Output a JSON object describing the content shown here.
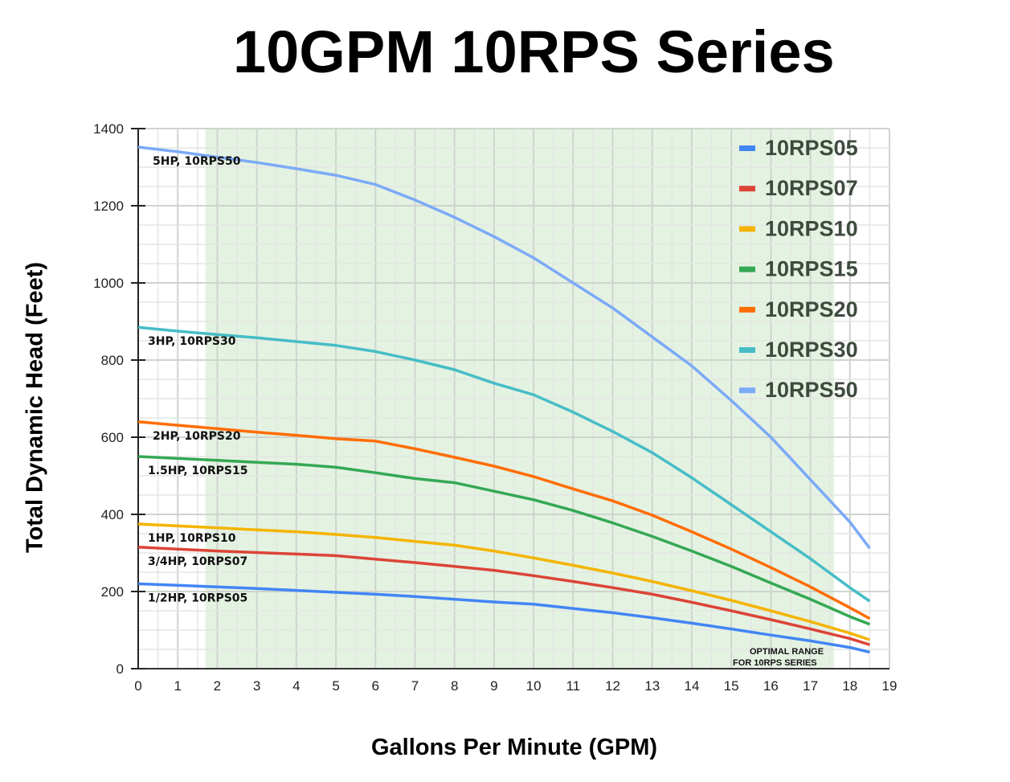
{
  "chart_data": {
    "type": "line",
    "title": "10GPM 10RPS Series",
    "xlabel": "Gallons Per Minute (GPM)",
    "ylabel": "Total Dynamic Head (Feet)",
    "xlim": [
      0,
      19
    ],
    "ylim": [
      0,
      1400
    ],
    "xticks": [
      "0",
      "1",
      "2",
      "3",
      "4",
      "5",
      "6",
      "7",
      "8",
      "9",
      "10",
      "11",
      "12",
      "13",
      "14",
      "15",
      "16",
      "17",
      "18",
      "19"
    ],
    "yticks": [
      "0",
      "200",
      "400",
      "600",
      "800",
      "1000",
      "1200",
      "1400"
    ],
    "grid": true,
    "legend_position": "top-right",
    "optimal_range": {
      "x": [
        1.7,
        17.6
      ],
      "label_line1": "OPTIMAL RANGE",
      "label_line2": "FOR 10RPS SERIES",
      "color": "#e4f2e2"
    },
    "x": [
      0,
      1,
      2,
      3,
      4,
      5,
      6,
      7,
      8,
      9,
      10,
      11,
      12,
      13,
      14,
      15,
      16,
      17,
      18,
      18.5
    ],
    "series": [
      {
        "name": "10RPS05",
        "label": "1/2HP, 10RPS05",
        "color": "#4285f4",
        "values": [
          220,
          216,
          212,
          208,
          203,
          198,
          193,
          187,
          180,
          173,
          167,
          156,
          145,
          132,
          118,
          103,
          87,
          72,
          55,
          43
        ]
      },
      {
        "name": "10RPS07",
        "label": "3/4HP, 10RPS07",
        "color": "#db4437",
        "values": [
          315,
          310,
          305,
          301,
          297,
          293,
          284,
          275,
          265,
          255,
          241,
          226,
          210,
          193,
          172,
          150,
          127,
          103,
          78,
          62
        ]
      },
      {
        "name": "10RPS10",
        "label": "1HP, 10RPS10",
        "color": "#f4b400",
        "values": [
          375,
          370,
          365,
          360,
          355,
          348,
          340,
          330,
          320,
          305,
          287,
          268,
          248,
          226,
          202,
          177,
          150,
          122,
          92,
          75
        ]
      },
      {
        "name": "10RPS15",
        "label": "1.5HP, 10RPS15",
        "color": "#34a853",
        "values": [
          550,
          545,
          540,
          535,
          530,
          522,
          508,
          493,
          482,
          460,
          438,
          410,
          378,
          343,
          305,
          265,
          222,
          180,
          135,
          115
        ]
      },
      {
        "name": "10RPS20",
        "label": "2HP, 10RPS20",
        "color": "#ff6d01",
        "values": [
          640,
          631,
          622,
          613,
          605,
          596,
          590,
          570,
          548,
          525,
          498,
          466,
          435,
          398,
          355,
          310,
          262,
          212,
          158,
          130
        ]
      },
      {
        "name": "10RPS30",
        "label": "3HP, 10RPS30",
        "color": "#46bdc6",
        "values": [
          885,
          875,
          866,
          858,
          848,
          838,
          822,
          800,
          775,
          740,
          710,
          665,
          615,
          560,
          495,
          425,
          355,
          285,
          210,
          175
        ]
      },
      {
        "name": "10RPS50",
        "label": "5HP, 10RPS50",
        "color": "#7baaf7",
        "values": [
          1352,
          1340,
          1326,
          1312,
          1296,
          1279,
          1255,
          1215,
          1170,
          1120,
          1065,
          1000,
          935,
          860,
          785,
          695,
          600,
          490,
          380,
          312
        ]
      }
    ]
  }
}
